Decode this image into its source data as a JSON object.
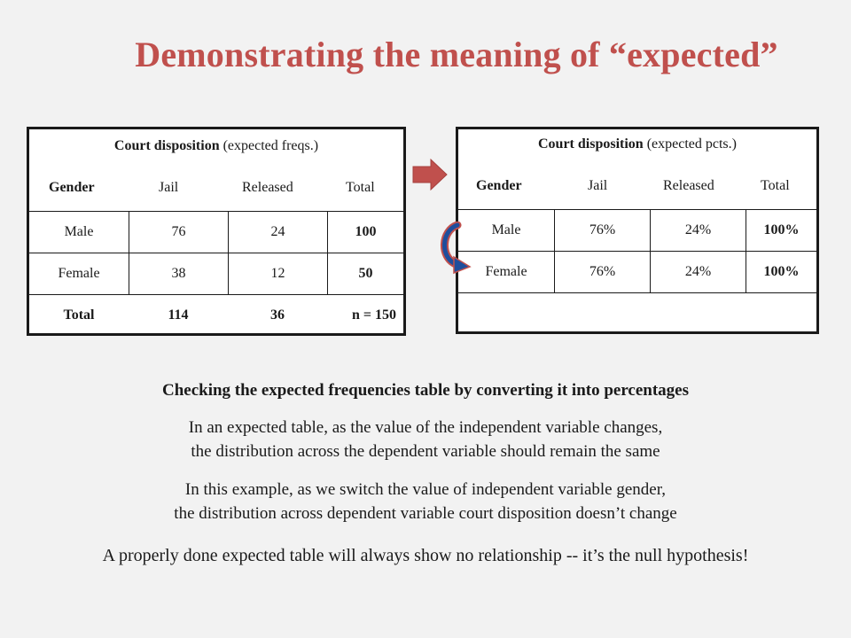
{
  "title": "Demonstrating the meaning of “expected”",
  "left_table": {
    "caption_bold": "Court disposition",
    "caption_rest": "(expected freqs.)",
    "headers": [
      "Gender",
      "Jail",
      "Released",
      "Total"
    ],
    "rows": [
      [
        "Male",
        "76",
        "24",
        "100"
      ],
      [
        "Female",
        "38",
        "12",
        "50"
      ],
      [
        "Total",
        "114",
        "36",
        "n = 150"
      ]
    ]
  },
  "right_table": {
    "caption_bold": "Court disposition",
    "caption_rest": "(expected pcts.)",
    "headers": [
      "Gender",
      "Jail",
      "Released",
      "Total"
    ],
    "rows": [
      [
        "Male",
        "76%",
        "24%",
        "100%"
      ],
      [
        "Female",
        "76%",
        "24%",
        "100%"
      ]
    ]
  },
  "text": {
    "heading": "Checking the expected frequencies table by converting it into percentages",
    "p1_line1": "In an expected table, as the value of the independent variable changes,",
    "p1_line2": "the distribution across the dependent variable should remain the same",
    "p2_line1": "In this example, as we switch the value of independent variable gender,",
    "p2_line2": "the distribution across dependent variable court disposition doesn’t change",
    "p3": "A properly done expected table will always show no relationship -- it’s the null hypothesis!"
  },
  "colors": {
    "title": "#c0504d",
    "arrow": "#c0504d",
    "curve_arrow": "#1f4e9c"
  },
  "icons": [
    "right-arrow-icon",
    "curved-arrow-icon"
  ]
}
